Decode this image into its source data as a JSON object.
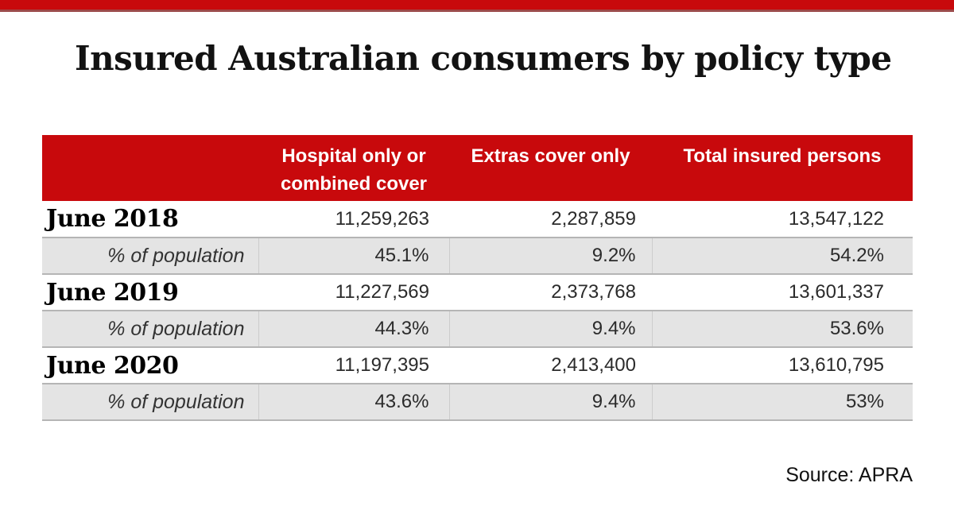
{
  "page": {
    "title": "Insured Australian consumers by policy type",
    "source": "Source: APRA"
  },
  "colors": {
    "accent_red": "#c8090c",
    "topbar_shadow": "#9d4b4b",
    "row_gray": "#e4e4e4",
    "row_border": "#b5b5b5",
    "header_text": "#ffffff"
  },
  "table": {
    "columns": [
      "",
      "Hospital only or combined cover",
      "Extras cover only",
      "Total insured persons"
    ],
    "rows": [
      {
        "label": "June 2018",
        "values": [
          "11,259,263",
          "2,287,859",
          "13,547,122"
        ]
      },
      {
        "label": "% of population",
        "values": [
          "45.1%",
          "9.2%",
          "54.2%"
        ]
      },
      {
        "label": "June 2019",
        "values": [
          "11,227,569",
          "2,373,768",
          "13,601,337"
        ]
      },
      {
        "label": "% of population",
        "values": [
          "44.3%",
          "9.4%",
          "53.6%"
        ]
      },
      {
        "label": "June 2020",
        "values": [
          "11,197,395",
          "2,413,400",
          "13,610,795"
        ]
      },
      {
        "label": "% of population",
        "values": [
          "43.6%",
          "9.4%",
          "53%"
        ]
      }
    ]
  },
  "chart_data": {
    "type": "table",
    "title": "Insured Australian consumers by policy type",
    "columns": [
      "Hospital only or combined cover",
      "Extras cover only",
      "Total insured persons"
    ],
    "rows": [
      {
        "period": "June 2018",
        "hospital_only_or_combined": 11259263,
        "extras_cover_only": 2287859,
        "total_insured_persons": 13547122,
        "pct_of_population": {
          "hospital_only_or_combined": 45.1,
          "extras_cover_only": 9.2,
          "total_insured_persons": 54.2
        }
      },
      {
        "period": "June 2019",
        "hospital_only_or_combined": 11227569,
        "extras_cover_only": 2373768,
        "total_insured_persons": 13601337,
        "pct_of_population": {
          "hospital_only_or_combined": 44.3,
          "extras_cover_only": 9.4,
          "total_insured_persons": 53.6
        }
      },
      {
        "period": "June 2020",
        "hospital_only_or_combined": 11197395,
        "extras_cover_only": 2413400,
        "total_insured_persons": 13610795,
        "pct_of_population": {
          "hospital_only_or_combined": 43.6,
          "extras_cover_only": 9.4,
          "total_insured_persons": 53
        }
      }
    ],
    "source": "APRA",
    "layout": {
      "header_background": "#c8090c",
      "alternating_percent_rows": true
    }
  }
}
